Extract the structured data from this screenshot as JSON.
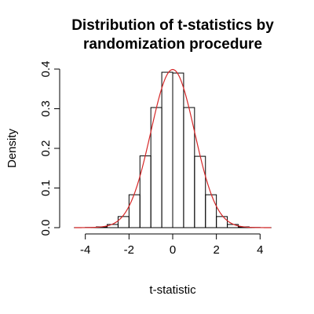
{
  "chart_data": {
    "type": "bar",
    "title_lines": [
      "Distribution of t-statistics by",
      "randomization procedure"
    ],
    "xlabel": "t-statistic",
    "ylabel": "Density",
    "xlim": [
      -4.6,
      4.6
    ],
    "ylim": [
      0,
      0.4
    ],
    "x_ticks": [
      {
        "value": -4,
        "label": "-4"
      },
      {
        "value": -2,
        "label": "-2"
      },
      {
        "value": 0,
        "label": "0"
      },
      {
        "value": 2,
        "label": "2"
      },
      {
        "value": 4,
        "label": "4"
      }
    ],
    "y_ticks": [
      {
        "value": 0.0,
        "label": "0.0"
      },
      {
        "value": 0.1,
        "label": "0.1"
      },
      {
        "value": 0.2,
        "label": "0.2"
      },
      {
        "value": 0.3,
        "label": "0.3"
      },
      {
        "value": 0.4,
        "label": "0.4"
      }
    ],
    "bin_width": 0.5,
    "bins": [
      {
        "x0": -4.5,
        "x1": -4.0,
        "density": 0.0001
      },
      {
        "x0": -4.0,
        "x1": -3.5,
        "density": 0.0005
      },
      {
        "x0": -3.5,
        "x1": -3.0,
        "density": 0.002
      },
      {
        "x0": -3.0,
        "x1": -2.5,
        "density": 0.008
      },
      {
        "x0": -2.5,
        "x1": -2.0,
        "density": 0.028
      },
      {
        "x0": -2.0,
        "x1": -1.5,
        "density": 0.083
      },
      {
        "x0": -1.5,
        "x1": -1.0,
        "density": 0.181
      },
      {
        "x0": -1.0,
        "x1": -0.5,
        "density": 0.303
      },
      {
        "x0": -0.5,
        "x1": 0.0,
        "density": 0.392
      },
      {
        "x0": 0.0,
        "x1": 0.5,
        "density": 0.39
      },
      {
        "x0": 0.5,
        "x1": 1.0,
        "density": 0.303
      },
      {
        "x0": 1.0,
        "x1": 1.5,
        "density": 0.18
      },
      {
        "x0": 1.5,
        "x1": 2.0,
        "density": 0.083
      },
      {
        "x0": 2.0,
        "x1": 2.5,
        "density": 0.028
      },
      {
        "x0": 2.5,
        "x1": 3.0,
        "density": 0.008
      },
      {
        "x0": 3.0,
        "x1": 3.5,
        "density": 0.002
      },
      {
        "x0": 3.5,
        "x1": 4.0,
        "density": 0.0005
      },
      {
        "x0": 4.0,
        "x1": 4.5,
        "density": 0.0001
      }
    ],
    "overlay_curve": {
      "type": "line",
      "distribution": "normal",
      "mean": 0,
      "sd": 1,
      "x_range": [
        -4.5,
        4.5
      ],
      "color": "#d62728"
    },
    "grid": false,
    "legend": "none"
  }
}
